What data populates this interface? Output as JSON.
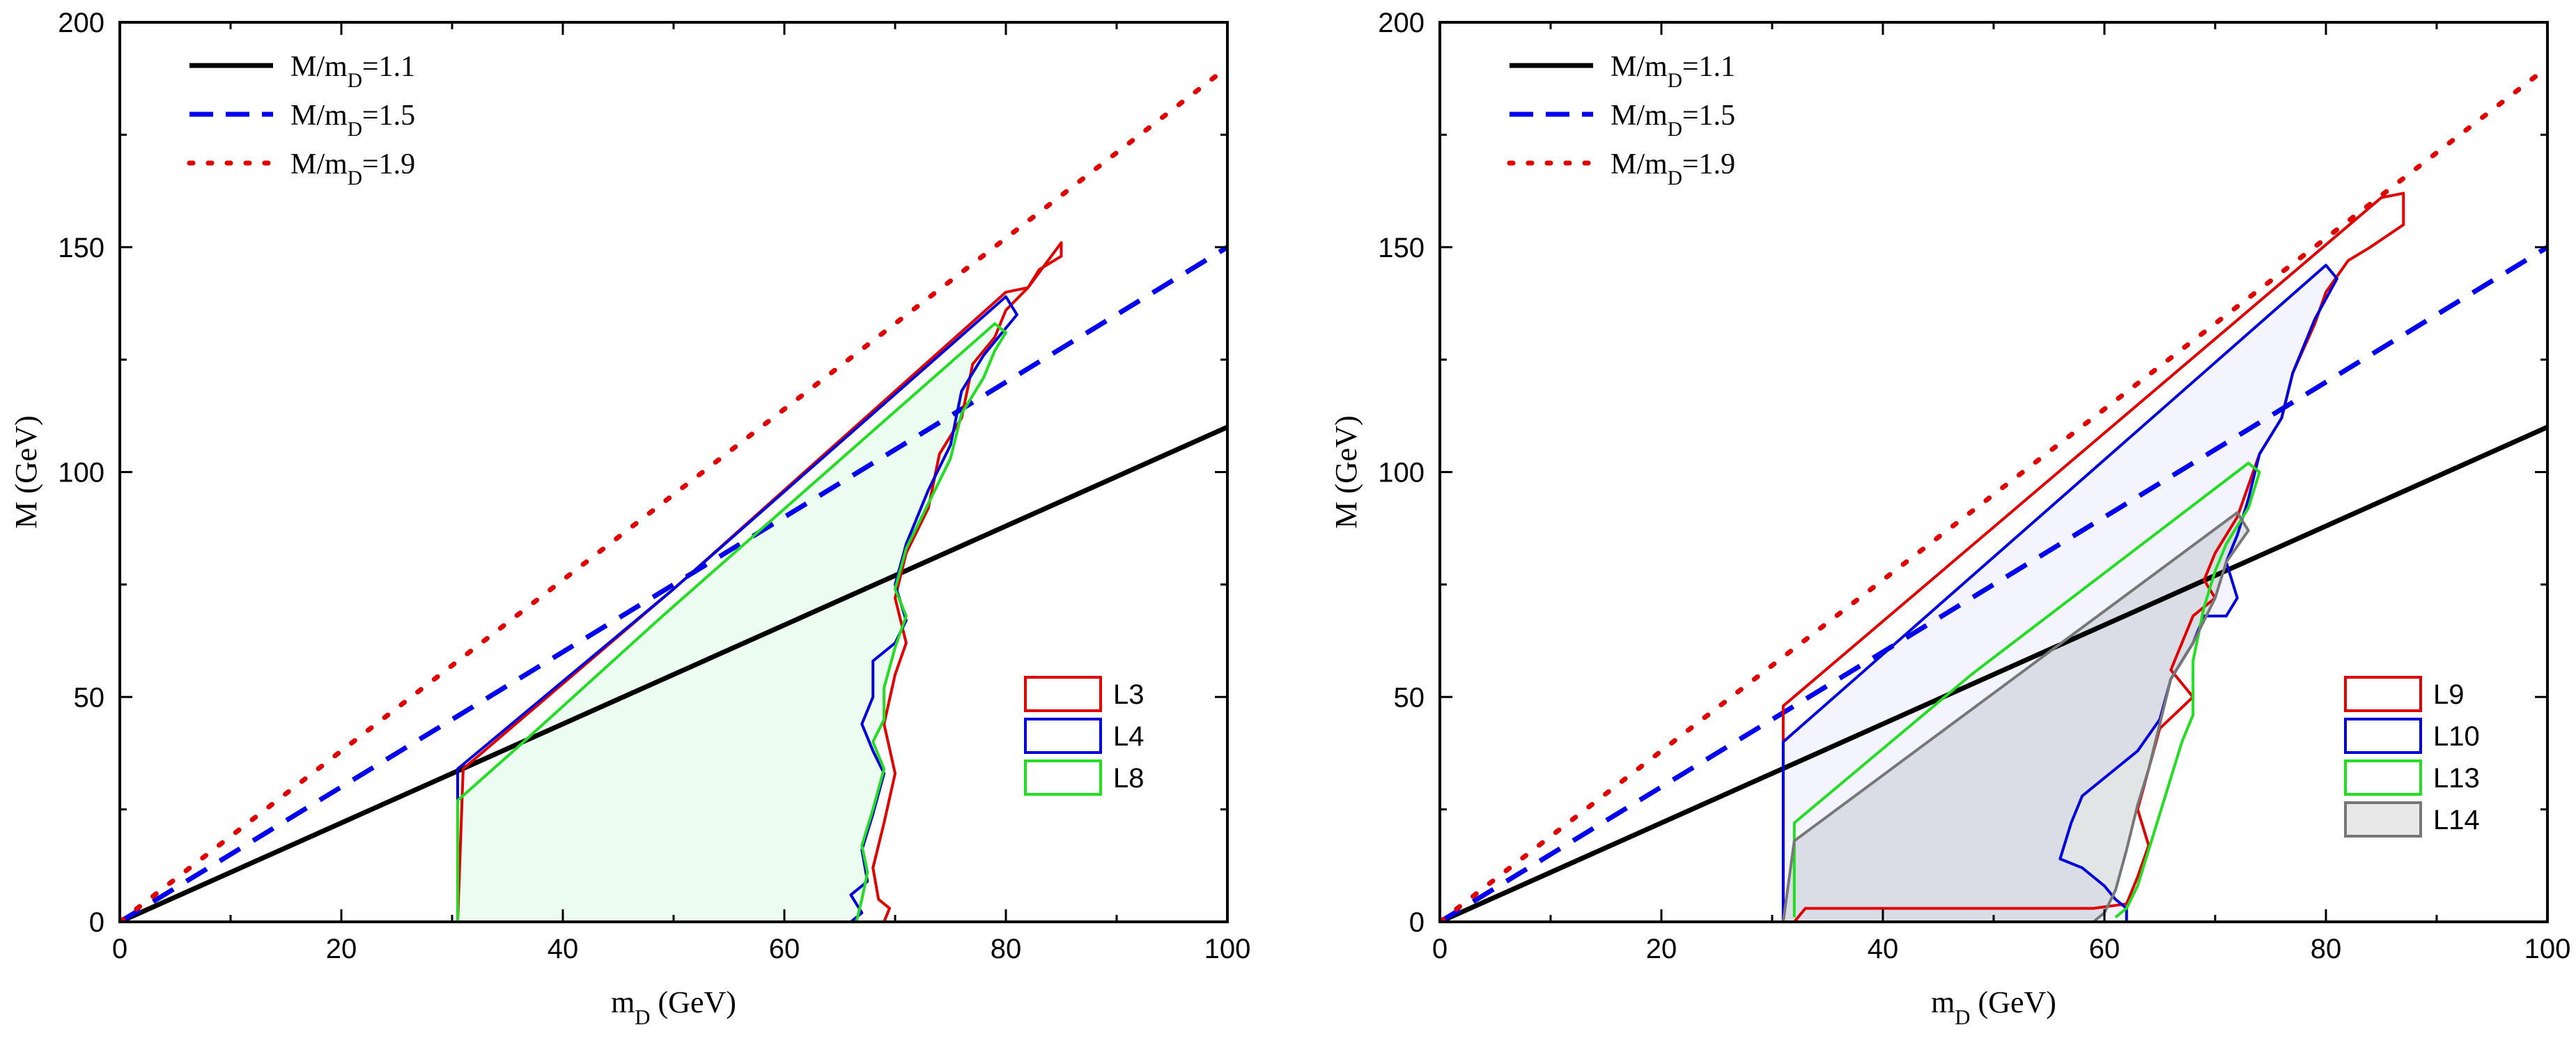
{
  "chart_data": [
    {
      "type": "line",
      "xlabel": "m_D  (GeV)",
      "ylabel": "M  (GeV)",
      "xlim": [
        0,
        100
      ],
      "ylim": [
        0,
        200
      ],
      "xticks": [
        "0",
        "20",
        "40",
        "60",
        "80",
        "100"
      ],
      "yticks": [
        "0",
        "50",
        "100",
        "150",
        "200"
      ],
      "reference_lines": [
        {
          "name": "M/m_D=1.1",
          "slope": 1.1,
          "color": "#000000",
          "style": "solid"
        },
        {
          "name": "M/m_D=1.5",
          "slope": 1.5,
          "color": "#0000ee",
          "style": "dashed"
        },
        {
          "name": "M/m_D=1.9",
          "slope": 1.9,
          "color": "#e00000",
          "style": "dotted"
        }
      ],
      "regions": [
        {
          "name": "L3",
          "color": "#e00000",
          "fill": "none",
          "points": [
            [
              30.5,
              0
            ],
            [
              31,
              34
            ],
            [
              50,
              74
            ],
            [
              80,
              140
            ],
            [
              82,
              141
            ],
            [
              83,
              145
            ],
            [
              85,
              148
            ],
            [
              85,
              151
            ],
            [
              82,
              141
            ],
            [
              80,
              136
            ],
            [
              79,
              130
            ],
            [
              77,
              124
            ],
            [
              76,
              112
            ],
            [
              74,
              104
            ],
            [
              73,
              92
            ],
            [
              71,
              82
            ],
            [
              70,
              72
            ],
            [
              71,
              62
            ],
            [
              70,
              55
            ],
            [
              69,
              44
            ],
            [
              70,
              33
            ],
            [
              69,
              22
            ],
            [
              68,
              12
            ],
            [
              68.5,
              5
            ],
            [
              69.5,
              3
            ],
            [
              69,
              0
            ]
          ]
        },
        {
          "name": "L4",
          "color": "#0000dd",
          "fill": "none",
          "points": [
            [
              30.5,
              0
            ],
            [
              30.5,
              34
            ],
            [
              50,
              74
            ],
            [
              80,
              139
            ],
            [
              81,
              135
            ],
            [
              80,
              132
            ],
            [
              78,
              126
            ],
            [
              76,
              118
            ],
            [
              75,
              106
            ],
            [
              73,
              96
            ],
            [
              71,
              84
            ],
            [
              70,
              75
            ],
            [
              71,
              67
            ],
            [
              70,
              62
            ],
            [
              68,
              58
            ],
            [
              68,
              50
            ],
            [
              67,
              44
            ],
            [
              68,
              38
            ],
            [
              69,
              33
            ],
            [
              68,
              24
            ],
            [
              67,
              16
            ],
            [
              67.5,
              9
            ],
            [
              66,
              6
            ],
            [
              67,
              2
            ],
            [
              66,
              0
            ]
          ]
        },
        {
          "name": "L8",
          "color": "#22dd22",
          "fill": "rgba(200,245,215,0.35)",
          "points": [
            [
              30.5,
              0
            ],
            [
              30.5,
              27
            ],
            [
              36,
              39
            ],
            [
              49,
              68
            ],
            [
              79,
              133
            ],
            [
              80,
              131
            ],
            [
              79,
              127
            ],
            [
              78,
              121
            ],
            [
              76,
              113
            ],
            [
              75,
              103
            ],
            [
              73,
              93
            ],
            [
              71,
              83
            ],
            [
              70,
              74
            ],
            [
              71,
              68
            ],
            [
              70,
              61
            ],
            [
              69,
              52
            ],
            [
              69,
              45
            ],
            [
              68,
              40
            ],
            [
              69,
              34
            ],
            [
              68,
              25
            ],
            [
              67,
              17
            ],
            [
              67.5,
              11
            ],
            [
              67,
              5
            ],
            [
              66.5,
              0
            ]
          ]
        }
      ],
      "legend": [
        "L3",
        "L4",
        "L8"
      ]
    },
    {
      "type": "line",
      "xlabel": "m_D  (GeV)",
      "ylabel": "M  (GeV)",
      "xlim": [
        0,
        100
      ],
      "ylim": [
        0,
        200
      ],
      "xticks": [
        "0",
        "20",
        "40",
        "60",
        "80",
        "100"
      ],
      "yticks": [
        "0",
        "50",
        "100",
        "150",
        "200"
      ],
      "reference_lines": [
        {
          "name": "M/m_D=1.1",
          "slope": 1.1,
          "color": "#000000",
          "style": "solid"
        },
        {
          "name": "M/m_D=1.5",
          "slope": 1.5,
          "color": "#0000ee",
          "style": "dashed"
        },
        {
          "name": "M/m_D=1.9",
          "slope": 1.9,
          "color": "#e00000",
          "style": "dotted"
        }
      ],
      "regions": [
        {
          "name": "L9",
          "color": "#e00000",
          "fill": "none",
          "points": [
            [
              31,
              0
            ],
            [
              31,
              48
            ],
            [
              85,
              161
            ],
            [
              87,
              162
            ],
            [
              87,
              155
            ],
            [
              84,
              150
            ],
            [
              82,
              147
            ],
            [
              80,
              140
            ],
            [
              79,
              133
            ],
            [
              77,
              122
            ],
            [
              76,
              112
            ],
            [
              74,
              104
            ],
            [
              73,
              97
            ],
            [
              72,
              90
            ],
            [
              70,
              82
            ],
            [
              69,
              76
            ],
            [
              70,
              72
            ],
            [
              68,
              68
            ],
            [
              67,
              62
            ],
            [
              66,
              56
            ],
            [
              68,
              50
            ],
            [
              65,
              43
            ],
            [
              64,
              34
            ],
            [
              63,
              25
            ],
            [
              64,
              17
            ],
            [
              63,
              10
            ],
            [
              62,
              4
            ],
            [
              59,
              3
            ],
            [
              33,
              3
            ],
            [
              32,
              0
            ]
          ]
        },
        {
          "name": "L10",
          "color": "#0000dd",
          "fill": "rgba(230,230,255,0.45)",
          "points": [
            [
              31,
              0
            ],
            [
              31,
              40
            ],
            [
              80,
              146
            ],
            [
              81,
              143
            ],
            [
              79,
              134
            ],
            [
              77,
              122
            ],
            [
              76,
              112
            ],
            [
              74,
              104
            ],
            [
              73,
              94
            ],
            [
              72,
              86
            ],
            [
              71,
              80
            ],
            [
              72,
              72
            ],
            [
              71,
              68
            ],
            [
              69,
              68
            ],
            [
              68,
              62
            ],
            [
              66,
              54
            ],
            [
              65,
              45
            ],
            [
              63,
              38
            ],
            [
              60,
              32
            ],
            [
              58,
              28
            ],
            [
              57,
              22
            ],
            [
              56,
              14
            ],
            [
              58,
              12
            ],
            [
              60,
              8
            ],
            [
              61,
              5
            ],
            [
              62,
              3
            ],
            [
              62,
              0
            ]
          ]
        },
        {
          "name": "L13",
          "color": "#22dd22",
          "fill": "none",
          "points": [
            [
              32,
              1
            ],
            [
              32,
              22
            ],
            [
              48,
              55
            ],
            [
              73,
              102
            ],
            [
              74,
              100
            ],
            [
              73,
              92
            ],
            [
              71,
              84
            ],
            [
              70,
              78
            ],
            [
              69,
              70
            ],
            [
              68,
              58
            ],
            [
              68,
              46
            ],
            [
              67,
              40
            ],
            [
              66,
              32
            ],
            [
              65,
              24
            ],
            [
              64,
              16
            ],
            [
              63,
              8
            ],
            [
              62,
              3
            ],
            [
              61,
              1
            ]
          ]
        },
        {
          "name": "L14",
          "color": "#777777",
          "fill": "rgba(150,160,160,0.28)",
          "points": [
            [
              31,
              0
            ],
            [
              32,
              18
            ],
            [
              72,
              91
            ],
            [
              73,
              87
            ],
            [
              71,
              80
            ],
            [
              70,
              72
            ],
            [
              68,
              62
            ],
            [
              66,
              54
            ],
            [
              65,
              44
            ],
            [
              64,
              34
            ],
            [
              63,
              26
            ],
            [
              62,
              16
            ],
            [
              61,
              7
            ],
            [
              60,
              2
            ],
            [
              59,
              0
            ]
          ]
        }
      ],
      "legend": [
        "L9",
        "L10",
        "L13",
        "L14"
      ]
    }
  ]
}
